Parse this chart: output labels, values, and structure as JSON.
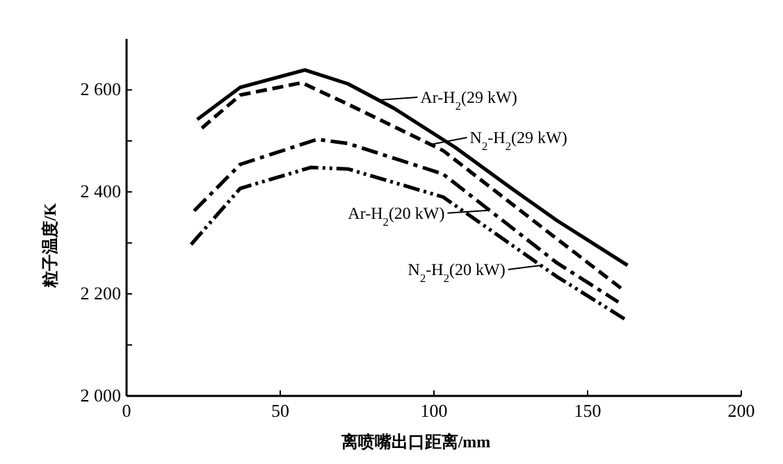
{
  "chart_data": {
    "type": "line",
    "xlabel": "离喷嘴出口距离/mm",
    "ylabel": "粒子温度/K",
    "xlim": [
      0,
      200
    ],
    "xticks": [
      0,
      50,
      100,
      150,
      200
    ],
    "ylim": [
      2000,
      2700
    ],
    "yticks": [
      {
        "value": 2000,
        "label": "2 000"
      },
      {
        "value": 2100,
        "label": null
      },
      {
        "value": 2200,
        "label": "2 200"
      },
      {
        "value": 2300,
        "label": null
      },
      {
        "value": 2400,
        "label": "2 400"
      },
      {
        "value": 2500,
        "label": null
      },
      {
        "value": 2600,
        "label": "2 600"
      }
    ],
    "series": [
      {
        "color": "#000000",
        "line_style": "solid",
        "x": [
          23,
          37,
          58,
          72,
          87,
          107,
          125,
          140,
          163
        ],
        "values": [
          2542,
          2605,
          2639,
          2612,
          2564,
          2487,
          2408,
          2344,
          2256
        ]
      },
      {
        "color": "#000000",
        "line_style": "dashed",
        "x": [
          24.5,
          37,
          57,
          72,
          103,
          140,
          162
        ],
        "values": [
          2525,
          2590,
          2614,
          2572,
          2481,
          2308,
          2206
        ]
      },
      {
        "color": "#000000",
        "line_style": "dashdot",
        "x": [
          22,
          37,
          62,
          72,
          103,
          140,
          160
        ],
        "values": [
          2363,
          2454,
          2503,
          2495,
          2435,
          2261,
          2184
        ]
      },
      {
        "color": "#000000",
        "line_style": "dashdotdot",
        "x": [
          21,
          37,
          60,
          72,
          103,
          140,
          162
        ],
        "values": [
          2297,
          2407,
          2448,
          2445,
          2390,
          2234,
          2151
        ]
      }
    ],
    "annotations": [
      {
        "text": "Ar-H$_{2}$(29 kW)",
        "x": 82,
        "y": 2580
      },
      {
        "text": "N$_{2}$-H$_{2}$(29 kW)",
        "x": 99,
        "y": 2493
      },
      {
        "text": "Ar-H$_{2}$(20 kW)",
        "x": 118,
        "y": 2364
      },
      {
        "text": "N$_{2}$-H$_{2}$(20 kW)",
        "x": 135,
        "y": 2256
      }
    ]
  }
}
